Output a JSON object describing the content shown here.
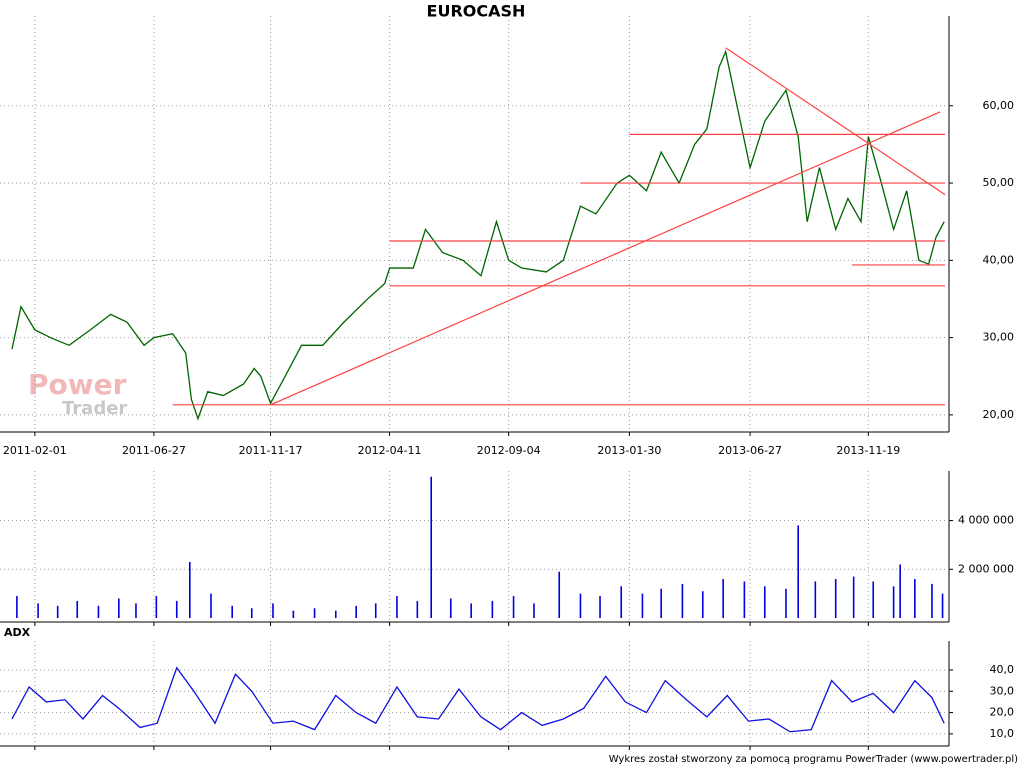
{
  "chart_data": [
    {
      "type": "line",
      "title": "EUROCASH",
      "watermark": [
        "Power",
        "Trader"
      ],
      "x": [
        "2011-01-04",
        "2011-01-15",
        "2011-02-01",
        "2011-02-20",
        "2011-03-15",
        "2011-04-10",
        "2011-05-05",
        "2011-05-25",
        "2011-06-15",
        "2011-06-27",
        "2011-07-20",
        "2011-08-05",
        "2011-08-12",
        "2011-08-20",
        "2011-09-01",
        "2011-09-20",
        "2011-10-15",
        "2011-10-28",
        "2011-11-05",
        "2011-11-17",
        "2011-12-05",
        "2011-12-25",
        "2012-01-20",
        "2012-02-15",
        "2012-03-15",
        "2012-04-05",
        "2012-04-11",
        "2012-05-10",
        "2012-05-25",
        "2012-06-15",
        "2012-07-10",
        "2012-08-01",
        "2012-08-20",
        "2012-09-04",
        "2012-09-20",
        "2012-10-20",
        "2012-11-10",
        "2012-12-01",
        "2012-12-20",
        "2013-01-15",
        "2013-01-30",
        "2013-02-20",
        "2013-03-10",
        "2013-04-01",
        "2013-04-20",
        "2013-05-05",
        "2013-05-20",
        "2013-05-28",
        "2013-06-15",
        "2013-06-27",
        "2013-07-15",
        "2013-08-10",
        "2013-08-25",
        "2013-09-05",
        "2013-09-20",
        "2013-10-10",
        "2013-10-25",
        "2013-11-10",
        "2013-11-19",
        "2013-12-05",
        "2013-12-20",
        "2014-01-05",
        "2014-01-20",
        "2014-02-01",
        "2014-02-10",
        "2014-02-20"
      ],
      "series": [
        {
          "color": "#006400",
          "values": [
            28.5,
            34,
            31,
            30,
            29,
            31,
            33,
            32,
            29,
            30,
            30.5,
            28,
            22,
            19.5,
            23,
            22.5,
            24,
            26,
            25,
            21.5,
            25,
            29,
            29,
            32,
            35,
            37,
            39,
            39,
            44,
            41,
            40,
            38,
            45,
            40,
            39,
            38.5,
            40,
            47,
            46,
            50,
            51,
            49,
            54,
            50,
            55,
            57,
            65,
            67,
            58,
            52,
            58,
            62,
            56,
            45,
            52,
            44,
            48,
            45,
            56,
            50,
            44,
            49,
            40,
            39.5,
            43,
            45
          ]
        }
      ],
      "lines": [
        {
          "x": [
            "2011-07-20",
            "2014-02-21"
          ],
          "values": [
            21.3,
            21.3
          ],
          "color": "#ff4040"
        },
        {
          "x": [
            "2012-04-11",
            "2014-02-21"
          ],
          "values": [
            36.7,
            36.7
          ],
          "color": "#ff4040"
        },
        {
          "x": [
            "2012-04-11",
            "2014-02-21"
          ],
          "values": [
            42.5,
            42.5
          ],
          "color": "#ff4040"
        },
        {
          "x": [
            "2012-12-01",
            "2014-02-21"
          ],
          "values": [
            50,
            50
          ],
          "color": "#ff4040"
        },
        {
          "x": [
            "2013-01-30",
            "2014-02-21"
          ],
          "values": [
            56.3,
            56.3
          ],
          "color": "#ff4040"
        },
        {
          "x": [
            "2013-10-30",
            "2014-02-21"
          ],
          "values": [
            39.4,
            39.4
          ],
          "color": "#ff4040"
        },
        {
          "x": [
            "2011-11-17",
            "2014-02-15"
          ],
          "values": [
            21.3,
            59.2
          ],
          "color": "#ff4040"
        },
        {
          "x": [
            "2013-05-28",
            "2014-02-21"
          ],
          "values": [
            67.5,
            48.5
          ],
          "color": "#ff4040"
        }
      ],
      "xlim": [
        "2011-01-04",
        "2014-02-21"
      ],
      "xticks": [
        "2011-02-01",
        "2011-06-27",
        "2011-11-17",
        "2012-04-11",
        "2012-09-04",
        "2013-01-30",
        "2013-06-27",
        "2013-11-19"
      ],
      "ylim": [
        18.3,
        71.1
      ],
      "yticks": [
        {
          "value": 20,
          "label": "20,00"
        },
        {
          "value": 30,
          "label": "30,00"
        },
        {
          "value": 40,
          "label": "40,00"
        },
        {
          "value": 50,
          "label": "50,00"
        },
        {
          "value": 60,
          "label": "60,00"
        }
      ],
      "grid": true
    },
    {
      "type": "bar",
      "color": "#0000e0",
      "x": [
        "2011-01-10",
        "2011-02-05",
        "2011-03-01",
        "2011-03-25",
        "2011-04-20",
        "2011-05-15",
        "2011-06-05",
        "2011-06-30",
        "2011-07-25",
        "2011-08-10",
        "2011-09-05",
        "2011-10-01",
        "2011-10-25",
        "2011-11-20",
        "2011-12-15",
        "2012-01-10",
        "2012-02-05",
        "2012-03-01",
        "2012-03-25",
        "2012-04-20",
        "2012-05-15",
        "2012-06-01",
        "2012-06-25",
        "2012-07-20",
        "2012-08-15",
        "2012-09-10",
        "2012-10-05",
        "2012-11-05",
        "2012-12-01",
        "2012-12-25",
        "2013-01-20",
        "2013-02-15",
        "2013-03-10",
        "2013-04-05",
        "2013-04-30",
        "2013-05-25",
        "2013-06-20",
        "2013-07-15",
        "2013-08-10",
        "2013-08-25",
        "2013-09-15",
        "2013-10-10",
        "2013-11-01",
        "2013-11-25",
        "2013-12-20",
        "2013-12-28",
        "2014-01-15",
        "2014-02-05",
        "2014-02-18"
      ],
      "values": [
        900000,
        600000,
        500000,
        700000,
        500000,
        800000,
        600000,
        900000,
        700000,
        2300000,
        1000000,
        500000,
        400000,
        600000,
        300000,
        400000,
        300000,
        500000,
        600000,
        900000,
        700000,
        5800000,
        800000,
        600000,
        700000,
        900000,
        600000,
        1900000,
        1000000,
        900000,
        1300000,
        1000000,
        1200000,
        1400000,
        1100000,
        1600000,
        1500000,
        1300000,
        1200000,
        3800000,
        1500000,
        1600000,
        1700000,
        1500000,
        1300000,
        2200000,
        1600000,
        1400000,
        1000000
      ],
      "ylim": [
        0,
        5870000
      ],
      "yticks": [
        {
          "value": 2000000,
          "label": "2 000 000"
        },
        {
          "value": 4000000,
          "label": "4 000 000"
        }
      ],
      "grid": true
    },
    {
      "type": "line",
      "title": "ADX",
      "x": [
        "2011-01-04",
        "2011-01-25",
        "2011-02-15",
        "2011-03-10",
        "2011-04-01",
        "2011-04-25",
        "2011-05-15",
        "2011-06-10",
        "2011-07-01",
        "2011-07-25",
        "2011-08-15",
        "2011-09-10",
        "2011-10-05",
        "2011-10-25",
        "2011-11-20",
        "2011-12-15",
        "2012-01-10",
        "2012-02-05",
        "2012-03-01",
        "2012-03-25",
        "2012-04-20",
        "2012-05-15",
        "2012-06-10",
        "2012-07-05",
        "2012-08-01",
        "2012-08-25",
        "2012-09-20",
        "2012-10-15",
        "2012-11-10",
        "2012-12-05",
        "2013-01-01",
        "2013-01-25",
        "2013-02-20",
        "2013-03-15",
        "2013-04-10",
        "2013-05-05",
        "2013-05-30",
        "2013-06-25",
        "2013-07-20",
        "2013-08-15",
        "2013-09-10",
        "2013-10-05",
        "2013-10-30",
        "2013-11-25",
        "2013-12-20",
        "2014-01-15",
        "2014-02-05",
        "2014-02-20"
      ],
      "series": [
        {
          "color": "#1010e0",
          "values": [
            17,
            32,
            25,
            26,
            17,
            28,
            22,
            13,
            15,
            41,
            30,
            15,
            38,
            30,
            15,
            16,
            12,
            28,
            20,
            15,
            32,
            18,
            17,
            31,
            18,
            12,
            20,
            14,
            17,
            22,
            37,
            25,
            20,
            35,
            26,
            18,
            28,
            16,
            17,
            11,
            12,
            35,
            25,
            29,
            20,
            35,
            27,
            15
          ]
        }
      ],
      "xlim": [
        "2011-01-04",
        "2014-02-21"
      ],
      "ylim": [
        6.2,
        51.7
      ],
      "yticks": [
        {
          "value": 10,
          "label": "10,0"
        },
        {
          "value": 20,
          "label": "20,0"
        },
        {
          "value": 30,
          "label": "30,0"
        },
        {
          "value": 40,
          "label": "40,0"
        }
      ],
      "grid": true
    }
  ],
  "footer": "Wykres został stworzony za pomocą programu PowerTrader (www.powertrader.pl)"
}
